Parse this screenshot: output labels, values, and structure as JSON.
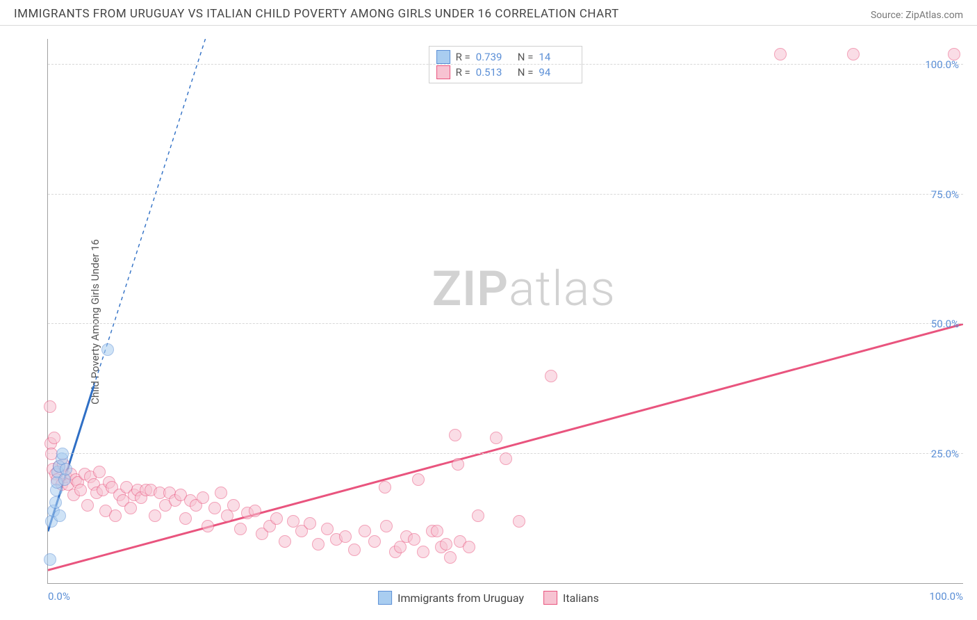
{
  "header": {
    "title": "IMMIGRANTS FROM URUGUAY VS ITALIAN CHILD POVERTY AMONG GIRLS UNDER 16 CORRELATION CHART",
    "source_label": "Source:",
    "source_name": "ZipAtlas.com"
  },
  "watermark": {
    "part1": "ZIP",
    "part2": "atlas"
  },
  "chart": {
    "type": "scatter",
    "ylabel": "Child Poverty Among Girls Under 16",
    "xlim": [
      0,
      100
    ],
    "ylim": [
      0,
      105
    ],
    "yticks": [
      {
        "v": 25,
        "label": "25.0%"
      },
      {
        "v": 50,
        "label": "50.0%"
      },
      {
        "v": 75,
        "label": "75.0%"
      },
      {
        "v": 100,
        "label": "100.0%"
      }
    ],
    "xticks": [
      {
        "v": 0,
        "label": "0.0%"
      },
      {
        "v": 100,
        "label": "100.0%"
      }
    ],
    "background_color": "#ffffff",
    "grid_color": "#d8d8d8",
    "axis_color": "#a0a0a0",
    "tick_label_color": "#5b8fd6",
    "marker_radius": 9,
    "marker_opacity": 0.55,
    "series": [
      {
        "id": "uruguay",
        "label": "Immigrants from Uruguay",
        "color_fill": "#a9cdf0",
        "color_stroke": "#5b8fd6",
        "r_label": "R =",
        "r_value": "0.739",
        "n_label": "N =",
        "n_value": "14",
        "trend": {
          "x1": 0,
          "y1": 10,
          "x2": 5,
          "y2": 38,
          "dash_x2": 17.2,
          "dash_y2": 105,
          "stroke": "#2f6fc5",
          "width": 3,
          "dash_width": 1.4
        },
        "points": [
          [
            0.2,
            4.5
          ],
          [
            0.4,
            12.0
          ],
          [
            0.6,
            14.0
          ],
          [
            0.8,
            15.5
          ],
          [
            0.9,
            18.0
          ],
          [
            1.0,
            19.5
          ],
          [
            1.1,
            21.5
          ],
          [
            1.2,
            22.5
          ],
          [
            1.3,
            13.0
          ],
          [
            1.5,
            24.0
          ],
          [
            1.6,
            25.0
          ],
          [
            1.8,
            20.0
          ],
          [
            2.0,
            22.0
          ],
          [
            6.5,
            45.0
          ]
        ]
      },
      {
        "id": "italians",
        "label": "Italians",
        "color_fill": "#f7c3d2",
        "color_stroke": "#e9547e",
        "r_label": "R =",
        "r_value": "0.513",
        "n_label": "N =",
        "n_value": "94",
        "trend": {
          "x1": 0,
          "y1": 2.5,
          "x2": 100,
          "y2": 50,
          "stroke": "#e9547e",
          "width": 3
        },
        "points": [
          [
            0.2,
            34.0
          ],
          [
            0.3,
            27.0
          ],
          [
            0.4,
            25.0
          ],
          [
            0.5,
            22.0
          ],
          [
            0.7,
            28.0
          ],
          [
            0.8,
            21.0
          ],
          [
            1.0,
            20.0
          ],
          [
            1.2,
            22.5
          ],
          [
            1.5,
            19.0
          ],
          [
            1.7,
            23.0
          ],
          [
            2.0,
            20.5
          ],
          [
            2.2,
            19.0
          ],
          [
            2.5,
            21.0
          ],
          [
            2.8,
            17.0
          ],
          [
            3.0,
            20.0
          ],
          [
            3.3,
            19.5
          ],
          [
            3.6,
            18.0
          ],
          [
            4.0,
            21.0
          ],
          [
            4.3,
            15.0
          ],
          [
            4.6,
            20.5
          ],
          [
            5.0,
            19.0
          ],
          [
            5.3,
            17.5
          ],
          [
            5.6,
            21.5
          ],
          [
            6.0,
            18.0
          ],
          [
            6.3,
            14.0
          ],
          [
            6.7,
            19.5
          ],
          [
            7.0,
            18.5
          ],
          [
            7.4,
            13.0
          ],
          [
            7.8,
            17.0
          ],
          [
            8.2,
            16.0
          ],
          [
            8.6,
            18.5
          ],
          [
            9.0,
            14.5
          ],
          [
            9.4,
            17.0
          ],
          [
            9.8,
            18.0
          ],
          [
            10.2,
            16.5
          ],
          [
            10.7,
            18.0
          ],
          [
            11.2,
            18.0
          ],
          [
            11.7,
            13.0
          ],
          [
            12.2,
            17.5
          ],
          [
            12.8,
            15.0
          ],
          [
            13.3,
            17.5
          ],
          [
            13.9,
            16.0
          ],
          [
            14.5,
            17.0
          ],
          [
            15.0,
            12.5
          ],
          [
            15.6,
            16.0
          ],
          [
            16.2,
            15.0
          ],
          [
            16.9,
            16.5
          ],
          [
            17.5,
            11.0
          ],
          [
            18.2,
            14.5
          ],
          [
            18.9,
            17.5
          ],
          [
            19.6,
            13.0
          ],
          [
            20.3,
            15.0
          ],
          [
            21.0,
            10.5
          ],
          [
            21.8,
            13.5
          ],
          [
            22.6,
            14.0
          ],
          [
            23.4,
            9.5
          ],
          [
            24.2,
            11.0
          ],
          [
            25.0,
            12.5
          ],
          [
            25.9,
            8.0
          ],
          [
            26.8,
            12.0
          ],
          [
            27.7,
            10.0
          ],
          [
            28.6,
            11.5
          ],
          [
            29.5,
            7.5
          ],
          [
            30.5,
            10.5
          ],
          [
            31.5,
            8.5
          ],
          [
            32.5,
            9.0
          ],
          [
            33.5,
            6.5
          ],
          [
            34.6,
            10.0
          ],
          [
            35.7,
            8.0
          ],
          [
            36.8,
            18.5
          ],
          [
            38.0,
            6.0
          ],
          [
            39.2,
            9.0
          ],
          [
            37.0,
            11.0
          ],
          [
            38.5,
            7.0
          ],
          [
            40.0,
            8.5
          ],
          [
            41.0,
            6.0
          ],
          [
            40.5,
            20.0
          ],
          [
            44.5,
            28.5
          ],
          [
            42.0,
            10.0
          ],
          [
            43.0,
            7.0
          ],
          [
            44.0,
            5.0
          ],
          [
            45.0,
            8.0
          ],
          [
            46.0,
            7.0
          ],
          [
            42.5,
            10.0
          ],
          [
            43.5,
            7.5
          ],
          [
            44.8,
            23.0
          ],
          [
            47.0,
            13.0
          ],
          [
            49.0,
            28.0
          ],
          [
            50.0,
            24.0
          ],
          [
            51.5,
            12.0
          ],
          [
            55.0,
            40.0
          ],
          [
            80.0,
            102.0
          ],
          [
            88.0,
            102.0
          ],
          [
            99.0,
            102.0
          ]
        ]
      }
    ]
  }
}
